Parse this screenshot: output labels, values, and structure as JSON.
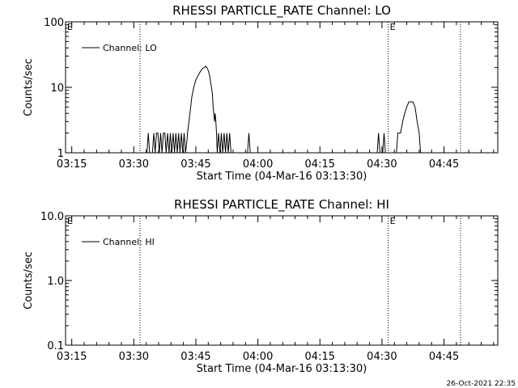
{
  "footer_timestamp": "26-Oct-2021 22:35",
  "chart_data": [
    {
      "type": "line",
      "title": "RHESSI PARTICLE_RATE Channel: LO",
      "xlabel": "Start Time (04-Mar-16 03:13:30)",
      "ylabel": "Counts/sec",
      "y_scale": "log",
      "ylim": [
        1,
        100
      ],
      "y_ticks": [
        {
          "value": 1,
          "label": "1"
        },
        {
          "value": 10,
          "label": "10"
        },
        {
          "value": 100,
          "label": "100"
        }
      ],
      "xlim": [
        "03:13:30",
        "04:58:00"
      ],
      "x_ticks": [
        "03:15",
        "03:30",
        "03:45",
        "04:00",
        "04:15",
        "04:30",
        "04:45"
      ],
      "legend": {
        "position": "top-left",
        "entries": [
          "Channel: LO"
        ]
      },
      "markers": [
        {
          "time": "03:31:30",
          "label": "",
          "style": "dotted"
        },
        {
          "time": "04:31:30",
          "label": "E",
          "style": "dotted"
        },
        {
          "time": "04:49:00",
          "label": "",
          "style": "dotted"
        }
      ],
      "corner_label": "E",
      "series": [
        {
          "points": [
            [
              "03:31:00",
              1
            ],
            [
              "03:33:10",
              1
            ],
            [
              "03:33:30",
              2
            ],
            [
              "03:33:50",
              1
            ],
            [
              "03:34:30",
              1
            ],
            [
              "03:34:50",
              2
            ],
            [
              "03:35:10",
              1
            ],
            [
              "03:35:30",
              2
            ],
            [
              "03:35:50",
              2
            ],
            [
              "03:36:10",
              1
            ],
            [
              "03:36:30",
              2
            ],
            [
              "03:36:50",
              1
            ],
            [
              "03:37:10",
              2
            ],
            [
              "03:37:30",
              2
            ],
            [
              "03:37:50",
              1
            ],
            [
              "03:38:10",
              2
            ],
            [
              "03:38:30",
              1
            ],
            [
              "03:38:50",
              2
            ],
            [
              "03:39:10",
              1
            ],
            [
              "03:39:30",
              2
            ],
            [
              "03:39:50",
              1
            ],
            [
              "03:40:10",
              2
            ],
            [
              "03:40:30",
              1
            ],
            [
              "03:40:50",
              2
            ],
            [
              "03:41:10",
              1
            ],
            [
              "03:41:30",
              2
            ],
            [
              "03:41:50",
              1
            ],
            [
              "03:42:10",
              2
            ],
            [
              "03:42:30",
              1
            ],
            [
              "03:42:50",
              1.5
            ],
            [
              "03:43:00",
              2
            ],
            [
              "03:43:20",
              3
            ],
            [
              "03:43:40",
              4.5
            ],
            [
              "03:44:00",
              7
            ],
            [
              "03:44:30",
              10
            ],
            [
              "03:45:00",
              13
            ],
            [
              "03:45:30",
              15
            ],
            [
              "03:46:00",
              17
            ],
            [
              "03:46:30",
              19
            ],
            [
              "03:47:00",
              20
            ],
            [
              "03:47:20",
              21
            ],
            [
              "03:47:40",
              20
            ],
            [
              "03:48:00",
              18
            ],
            [
              "03:48:20",
              15
            ],
            [
              "03:48:40",
              11
            ],
            [
              "03:49:00",
              8
            ],
            [
              "03:49:10",
              5
            ],
            [
              "03:49:20",
              4
            ],
            [
              "03:49:30",
              3
            ],
            [
              "03:49:40",
              4
            ],
            [
              "03:49:50",
              3
            ],
            [
              "03:50:00",
              2
            ],
            [
              "03:50:10",
              1
            ],
            [
              "03:50:30",
              2
            ],
            [
              "03:50:50",
              1
            ],
            [
              "03:51:10",
              2
            ],
            [
              "03:51:30",
              1
            ],
            [
              "03:51:50",
              2
            ],
            [
              "03:52:10",
              1
            ],
            [
              "03:52:30",
              2
            ],
            [
              "03:52:50",
              1
            ],
            [
              "03:53:10",
              2
            ],
            [
              "03:53:30",
              1
            ],
            [
              "03:57:30",
              1
            ],
            [
              "03:57:50",
              2
            ],
            [
              "03:58:10",
              1
            ],
            [
              "04:28:50",
              1
            ],
            [
              "04:29:10",
              2
            ],
            [
              "04:29:30",
              1
            ],
            [
              "04:30:10",
              1
            ],
            [
              "04:30:30",
              2
            ],
            [
              "04:30:50",
              1
            ],
            [
              "04:33:30",
              1
            ],
            [
              "04:33:50",
              2
            ],
            [
              "04:34:30",
              2
            ],
            [
              "04:35:00",
              3
            ],
            [
              "04:35:30",
              4
            ],
            [
              "04:36:00",
              5
            ],
            [
              "04:36:30",
              6
            ],
            [
              "04:37:30",
              6
            ],
            [
              "04:38:00",
              5
            ],
            [
              "04:38:30",
              3
            ],
            [
              "04:39:00",
              2
            ],
            [
              "04:39:20",
              1
            ]
          ]
        }
      ]
    },
    {
      "type": "line",
      "title": "RHESSI PARTICLE_RATE Channel: HI",
      "xlabel": "Start Time (04-Mar-16 03:13:30)",
      "ylabel": "Counts/sec",
      "y_scale": "log",
      "ylim": [
        0.1,
        10
      ],
      "y_ticks": [
        {
          "value": 0.1,
          "label": "0.1"
        },
        {
          "value": 1,
          "label": "1.0"
        },
        {
          "value": 10,
          "label": "10.0"
        }
      ],
      "xlim": [
        "03:13:30",
        "04:58:00"
      ],
      "x_ticks": [
        "03:15",
        "03:30",
        "03:45",
        "04:00",
        "04:15",
        "04:30",
        "04:45"
      ],
      "legend": {
        "position": "top-left",
        "entries": [
          "Channel: HI"
        ]
      },
      "markers": [
        {
          "time": "03:31:30",
          "label": "",
          "style": "dotted"
        },
        {
          "time": "04:31:30",
          "label": "E",
          "style": "dotted"
        },
        {
          "time": "04:49:00",
          "label": "",
          "style": "dotted"
        }
      ],
      "corner_label": "E",
      "series": [
        {
          "points": []
        }
      ]
    }
  ]
}
